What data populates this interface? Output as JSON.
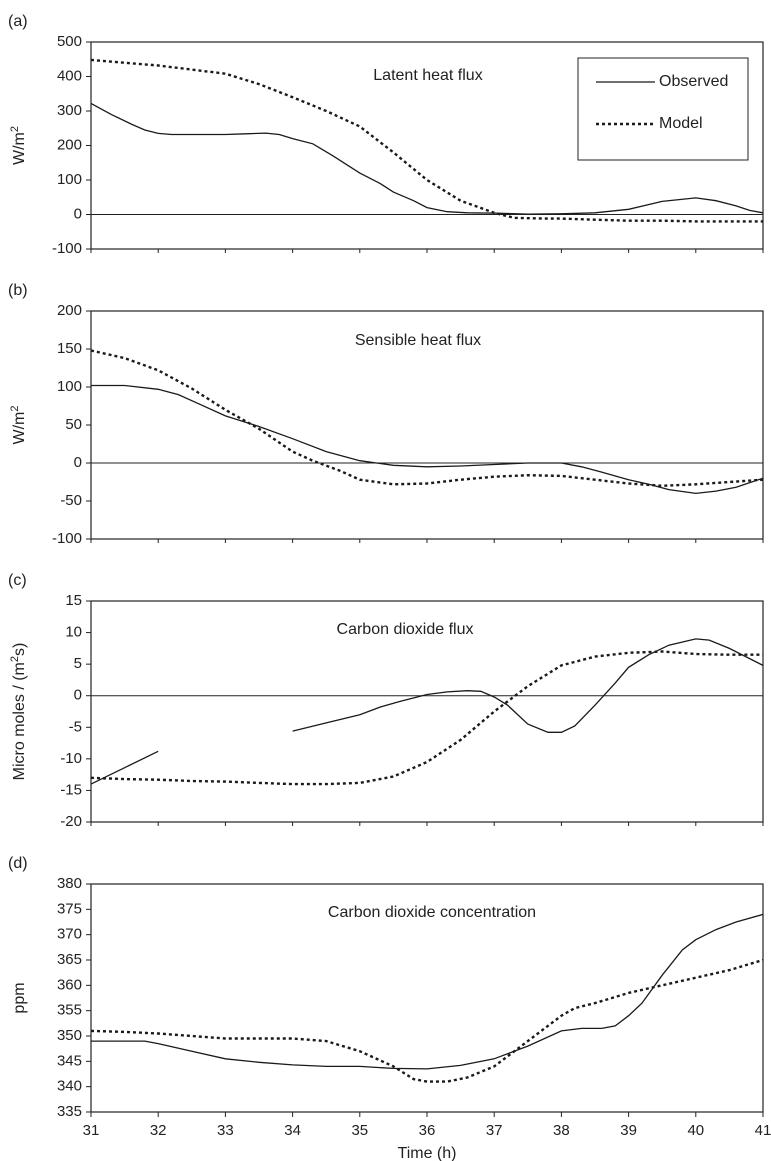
{
  "chart_data": [
    {
      "panel": "(a)",
      "type": "line",
      "title": "Latent heat flux",
      "ylabel": "W/m",
      "ylabel_sup": "2",
      "xlim": [
        31,
        41
      ],
      "ylim": [
        -100,
        500
      ],
      "yticks": [
        500,
        400,
        300,
        200,
        100,
        0,
        -100
      ],
      "legend": {
        "position": "top-right",
        "entries": [
          "Observed",
          "Model"
        ]
      },
      "series": [
        {
          "name": "Observed",
          "style": "solid",
          "segments": [
            [
              [
                31,
                322
              ],
              [
                31.3,
                290
              ],
              [
                31.6,
                262
              ],
              [
                31.8,
                245
              ],
              [
                32.0,
                235
              ],
              [
                32.2,
                232
              ],
              [
                32.6,
                232
              ],
              [
                33.0,
                232
              ],
              [
                33.3,
                234
              ],
              [
                33.6,
                236
              ],
              [
                33.8,
                232
              ],
              [
                34.0,
                220
              ],
              [
                34.3,
                205
              ],
              [
                34.6,
                170
              ],
              [
                35.0,
                120
              ],
              [
                35.3,
                90
              ],
              [
                35.5,
                65
              ],
              [
                35.8,
                40
              ],
              [
                36.0,
                20
              ],
              [
                36.3,
                8
              ],
              [
                36.6,
                5
              ],
              [
                37.0,
                4
              ],
              [
                37.5,
                1
              ],
              [
                38.0,
                2
              ],
              [
                38.5,
                5
              ],
              [
                39.0,
                15
              ],
              [
                39.5,
                38
              ],
              [
                40.0,
                48
              ],
              [
                40.3,
                40
              ],
              [
                40.6,
                25
              ],
              [
                40.8,
                12
              ],
              [
                41.0,
                5
              ]
            ]
          ]
        },
        {
          "name": "Model",
          "style": "dashed",
          "segments": [
            [
              [
                31,
                448
              ],
              [
                31.5,
                440
              ],
              [
                32.0,
                432
              ],
              [
                32.5,
                420
              ],
              [
                33.0,
                408
              ],
              [
                33.5,
                378
              ],
              [
                34.0,
                340
              ],
              [
                34.5,
                300
              ],
              [
                35.0,
                255
              ],
              [
                35.5,
                180
              ],
              [
                36.0,
                100
              ],
              [
                36.5,
                40
              ],
              [
                37.0,
                5
              ],
              [
                37.3,
                -10
              ],
              [
                37.8,
                -12
              ],
              [
                38.0,
                -12
              ],
              [
                38.5,
                -15
              ],
              [
                39.0,
                -18
              ],
              [
                39.5,
                -18
              ],
              [
                40.0,
                -20
              ],
              [
                40.5,
                -20
              ],
              [
                41.0,
                -20
              ]
            ]
          ]
        }
      ]
    },
    {
      "panel": "(b)",
      "type": "line",
      "title": "Sensible heat flux",
      "ylabel": "W/m",
      "ylabel_sup": "2",
      "xlim": [
        31,
        41
      ],
      "ylim": [
        -100,
        200
      ],
      "yticks": [
        200,
        150,
        100,
        50,
        0,
        -50,
        -100
      ],
      "series": [
        {
          "name": "Observed",
          "style": "solid",
          "segments": [
            [
              [
                31,
                102
              ],
              [
                31.5,
                102
              ],
              [
                32.0,
                97
              ],
              [
                32.3,
                90
              ],
              [
                32.6,
                78
              ],
              [
                33.0,
                62
              ],
              [
                33.5,
                48
              ],
              [
                34.0,
                32
              ],
              [
                34.5,
                15
              ],
              [
                35.0,
                3
              ],
              [
                35.5,
                -3
              ],
              [
                36.0,
                -5
              ],
              [
                36.5,
                -4
              ],
              [
                37.0,
                -2
              ],
              [
                37.5,
                0
              ],
              [
                38.0,
                0
              ],
              [
                38.3,
                -5
              ],
              [
                38.6,
                -12
              ],
              [
                39.0,
                -22
              ],
              [
                39.3,
                -28
              ],
              [
                39.6,
                -35
              ],
              [
                40.0,
                -40
              ],
              [
                40.3,
                -37
              ],
              [
                40.6,
                -32
              ],
              [
                41.0,
                -20
              ]
            ]
          ]
        },
        {
          "name": "Model",
          "style": "dashed",
          "segments": [
            [
              [
                31,
                148
              ],
              [
                31.5,
                138
              ],
              [
                32.0,
                122
              ],
              [
                32.5,
                98
              ],
              [
                33.0,
                70
              ],
              [
                33.5,
                45
              ],
              [
                34.0,
                15
              ],
              [
                34.3,
                3
              ],
              [
                34.7,
                -10
              ],
              [
                35.0,
                -22
              ],
              [
                35.5,
                -28
              ],
              [
                36.0,
                -27
              ],
              [
                36.5,
                -22
              ],
              [
                37.0,
                -18
              ],
              [
                37.5,
                -16
              ],
              [
                38.0,
                -17
              ],
              [
                38.3,
                -20
              ],
              [
                38.8,
                -25
              ],
              [
                39.0,
                -27
              ],
              [
                39.5,
                -30
              ],
              [
                40.0,
                -28
              ],
              [
                40.5,
                -25
              ],
              [
                41.0,
                -22
              ]
            ]
          ]
        }
      ]
    },
    {
      "panel": "(c)",
      "type": "line",
      "title": "Carbon dioxide flux",
      "ylabel": "Micro moles / (m",
      "ylabel_sup": "2",
      "ylabel_tail": "s)",
      "xlim": [
        31,
        41
      ],
      "ylim": [
        -20,
        15
      ],
      "yticks": [
        15,
        10,
        5,
        0,
        -5,
        -10,
        -15,
        -20
      ],
      "series": [
        {
          "name": "Observed",
          "style": "solid",
          "segments": [
            [
              [
                31,
                -14
              ],
              [
                32,
                -8.8
              ]
            ],
            [
              [
                34,
                -5.6
              ],
              [
                34.5,
                -4.3
              ],
              [
                35.0,
                -3.0
              ],
              [
                35.3,
                -1.8
              ],
              [
                35.6,
                -0.9
              ],
              [
                36.0,
                0.2
              ],
              [
                36.3,
                0.6
              ],
              [
                36.6,
                0.8
              ],
              [
                36.8,
                0.7
              ],
              [
                37.0,
                -0.2
              ],
              [
                37.2,
                -1.5
              ],
              [
                37.5,
                -4.5
              ],
              [
                37.8,
                -5.8
              ],
              [
                38.0,
                -5.8
              ],
              [
                38.2,
                -4.8
              ],
              [
                38.5,
                -1.5
              ],
              [
                38.8,
                2.0
              ],
              [
                39.0,
                4.5
              ],
              [
                39.3,
                6.5
              ],
              [
                39.6,
                8.0
              ],
              [
                40.0,
                9.0
              ],
              [
                40.2,
                8.8
              ],
              [
                40.5,
                7.5
              ],
              [
                41.0,
                4.8
              ]
            ]
          ]
        },
        {
          "name": "Model",
          "style": "dashed",
          "segments": [
            [
              [
                31,
                -13.0
              ],
              [
                31.5,
                -13.2
              ],
              [
                32.0,
                -13.3
              ],
              [
                32.5,
                -13.5
              ],
              [
                33.0,
                -13.6
              ],
              [
                33.5,
                -13.8
              ],
              [
                34.0,
                -14.0
              ],
              [
                34.5,
                -14.0
              ],
              [
                35.0,
                -13.8
              ],
              [
                35.5,
                -12.8
              ],
              [
                36.0,
                -10.5
              ],
              [
                36.5,
                -7.0
              ],
              [
                37.0,
                -2.5
              ],
              [
                37.5,
                1.5
              ],
              [
                38.0,
                4.8
              ],
              [
                38.5,
                6.2
              ],
              [
                39.0,
                6.8
              ],
              [
                39.5,
                7.0
              ],
              [
                40.0,
                6.6
              ],
              [
                40.5,
                6.5
              ],
              [
                41.0,
                6.5
              ]
            ]
          ]
        }
      ]
    },
    {
      "panel": "(d)",
      "type": "line",
      "title": "Carbon dioxide concentration",
      "ylabel": "ppm",
      "xlabel": "Time (h)",
      "xlim": [
        31,
        41
      ],
      "ylim": [
        335,
        380
      ],
      "xticks": [
        31,
        32,
        33,
        34,
        35,
        36,
        37,
        38,
        39,
        40,
        41
      ],
      "yticks": [
        380,
        375,
        370,
        365,
        360,
        355,
        350,
        345,
        340,
        335
      ],
      "series": [
        {
          "name": "Observed",
          "style": "solid",
          "segments": [
            [
              [
                31,
                349
              ],
              [
                31.5,
                349
              ],
              [
                31.8,
                349
              ],
              [
                32.0,
                348.5
              ],
              [
                32.5,
                347
              ],
              [
                33.0,
                345.5
              ],
              [
                33.5,
                344.8
              ],
              [
                34.0,
                344.3
              ],
              [
                34.5,
                344
              ],
              [
                35.0,
                344
              ],
              [
                35.5,
                343.6
              ],
              [
                36.0,
                343.5
              ],
              [
                36.5,
                344.2
              ],
              [
                37.0,
                345.5
              ],
              [
                37.5,
                348
              ],
              [
                38.0,
                351
              ],
              [
                38.3,
                351.5
              ],
              [
                38.6,
                351.5
              ],
              [
                38.8,
                352
              ],
              [
                39.0,
                354
              ],
              [
                39.2,
                356.5
              ],
              [
                39.5,
                362
              ],
              [
                39.8,
                367
              ],
              [
                40.0,
                369
              ],
              [
                40.3,
                371
              ],
              [
                40.6,
                372.5
              ],
              [
                41.0,
                374
              ]
            ]
          ]
        },
        {
          "name": "Model",
          "style": "dashed",
          "segments": [
            [
              [
                31,
                351
              ],
              [
                31.5,
                350.8
              ],
              [
                32.0,
                350.5
              ],
              [
                32.5,
                350
              ],
              [
                33.0,
                349.5
              ],
              [
                33.5,
                349.5
              ],
              [
                34.0,
                349.5
              ],
              [
                34.5,
                349
              ],
              [
                35.0,
                347
              ],
              [
                35.5,
                344
              ],
              [
                35.8,
                341.5
              ],
              [
                36.0,
                341
              ],
              [
                36.3,
                341
              ],
              [
                36.6,
                341.8
              ],
              [
                37.0,
                344
              ],
              [
                37.5,
                349
              ],
              [
                38.0,
                354
              ],
              [
                38.2,
                355.5
              ],
              [
                38.5,
                356.5
              ],
              [
                39.0,
                358.5
              ],
              [
                39.5,
                360
              ],
              [
                40.0,
                361.5
              ],
              [
                40.5,
                363
              ],
              [
                41.0,
                365
              ]
            ]
          ]
        }
      ]
    }
  ]
}
